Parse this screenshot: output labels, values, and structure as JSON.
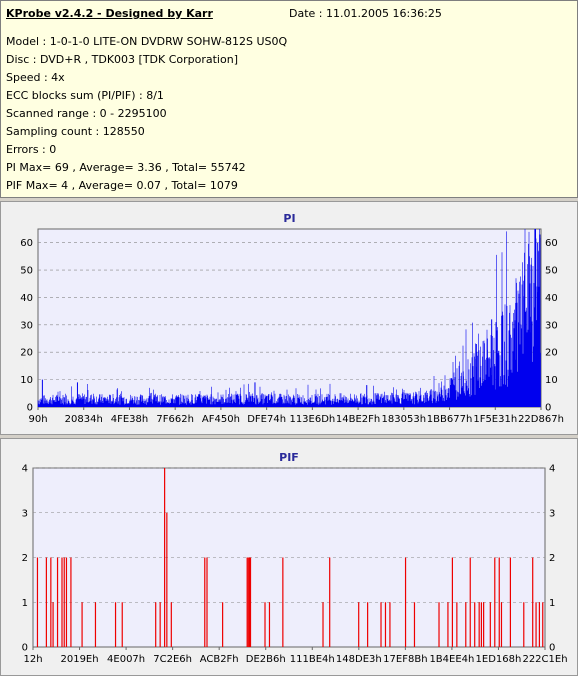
{
  "info": {
    "title": "KProbe v2.4.2 - Designed by Karr",
    "date": "Date : 11.01.2005 16:36:25",
    "lines": [
      "Model : 1-0-1-0 LITE-ON DVDRW SOHW-812S  US0Q",
      "Disc : DVD+R , TDK003 [TDK Corporation]",
      "Speed : 4x",
      "ECC blocks sum (PI/PIF) : 8/1",
      "Scanned range : 0 - 2295100",
      "Sampling count : 128550",
      "Errors : 0",
      "PI Max= 69 , Average= 3.36 , Total= 55742",
      "PIF Max= 4 , Average= 0.07 , Total= 1079"
    ]
  },
  "colors": {
    "pi": "#0000ee",
    "pif": "#ee0000",
    "plot_bg": "#eeeefc",
    "grid": "#888888"
  },
  "chart_data": [
    {
      "type": "bar",
      "title": "PI",
      "ylim": [
        0,
        65
      ],
      "yticks": [
        0,
        10,
        20,
        30,
        40,
        50,
        60
      ],
      "xlim": [
        0,
        2295100
      ],
      "xtick_labels": [
        "90h",
        "20834h",
        "4FE38h",
        "7F662h",
        "AF450h",
        "DFE74h",
        "113E6Dh",
        "14BE2Fh",
        "183053h",
        "1BB677h",
        "1F5E31h",
        "22D867h"
      ],
      "grid": "horizontal-dashed",
      "series": [
        {
          "points": [
            [
              0,
              2.5
            ],
            [
              100000,
              2.8
            ],
            [
              200000,
              3.0
            ],
            [
              300000,
              2.8
            ],
            [
              400000,
              2.9
            ],
            [
              500000,
              2.7
            ],
            [
              600000,
              2.8
            ],
            [
              700000,
              2.9
            ],
            [
              800000,
              2.8
            ],
            [
              900000,
              3.0
            ],
            [
              1000000,
              3.0
            ],
            [
              1100000,
              2.9
            ],
            [
              1200000,
              2.8
            ],
            [
              1300000,
              2.9
            ],
            [
              1400000,
              3.0
            ],
            [
              1500000,
              3.0
            ],
            [
              1600000,
              3.1
            ],
            [
              1700000,
              3.2
            ],
            [
              1750000,
              3.5
            ],
            [
              1800000,
              4.0
            ],
            [
              1850000,
              6.0
            ],
            [
              1900000,
              8.0
            ],
            [
              1950000,
              11.0
            ],
            [
              2000000,
              14.0
            ],
            [
              2050000,
              17.0
            ],
            [
              2100000,
              20.0
            ],
            [
              2150000,
              24.0
            ],
            [
              2200000,
              30.0
            ],
            [
              2250000,
              40.0
            ],
            [
              2295100,
              55.0
            ]
          ]
        }
      ],
      "peaks": [
        [
          20000,
          10
        ],
        [
          180000,
          9
        ],
        [
          990000,
          9
        ],
        [
          1500000,
          8
        ],
        [
          1940000,
          13
        ],
        [
          2000000,
          23
        ],
        [
          2050000,
          25
        ],
        [
          2070000,
          32
        ],
        [
          2090000,
          31
        ],
        [
          2150000,
          28
        ],
        [
          2180000,
          38
        ],
        [
          2220000,
          48
        ],
        [
          2250000,
          52
        ],
        [
          2270000,
          65
        ],
        [
          2280000,
          60
        ],
        [
          2290000,
          63
        ]
      ]
    },
    {
      "type": "bar",
      "title": "PIF",
      "ylim": [
        0,
        4
      ],
      "yticks": [
        0,
        1,
        2,
        3,
        4
      ],
      "xlim": [
        0,
        2295100
      ],
      "xtick_labels": [
        "12h",
        "2019Eh",
        "4E007h",
        "7C2E6h",
        "ACB2Fh",
        "DE2B6h",
        "111BE4h",
        "148DE3h",
        "17EF8Bh",
        "1B4EE4h",
        "1ED168h",
        "222C1Eh"
      ],
      "grid": "horizontal-dashed",
      "bars": [
        [
          20000,
          2
        ],
        [
          60000,
          2
        ],
        [
          80000,
          2
        ],
        [
          90000,
          1
        ],
        [
          110000,
          2
        ],
        [
          130000,
          2
        ],
        [
          140000,
          2
        ],
        [
          150000,
          2
        ],
        [
          170000,
          2
        ],
        [
          220000,
          1
        ],
        [
          280000,
          1
        ],
        [
          370000,
          1
        ],
        [
          400000,
          1
        ],
        [
          550000,
          1
        ],
        [
          570000,
          1
        ],
        [
          590000,
          4
        ],
        [
          600000,
          3
        ],
        [
          620000,
          1
        ],
        [
          770000,
          2
        ],
        [
          780000,
          2
        ],
        [
          850000,
          1
        ],
        [
          960000,
          2
        ],
        [
          965000,
          2
        ],
        [
          970000,
          2
        ],
        [
          975000,
          2
        ],
        [
          1040000,
          1
        ],
        [
          1060000,
          1
        ],
        [
          1120000,
          2
        ],
        [
          1300000,
          1
        ],
        [
          1330000,
          2
        ],
        [
          1460000,
          1
        ],
        [
          1500000,
          1
        ],
        [
          1560000,
          1
        ],
        [
          1580000,
          1
        ],
        [
          1600000,
          1
        ],
        [
          1670000,
          2
        ],
        [
          1710000,
          1
        ],
        [
          1820000,
          1
        ],
        [
          1860000,
          1
        ],
        [
          1880000,
          2
        ],
        [
          1900000,
          1
        ],
        [
          1940000,
          1
        ],
        [
          1960000,
          2
        ],
        [
          1980000,
          1
        ],
        [
          2000000,
          1
        ],
        [
          2010000,
          1
        ],
        [
          2020000,
          1
        ],
        [
          2050000,
          1
        ],
        [
          2070000,
          2
        ],
        [
          2090000,
          2
        ],
        [
          2100000,
          1
        ],
        [
          2140000,
          2
        ],
        [
          2200000,
          1
        ],
        [
          2240000,
          2
        ],
        [
          2255000,
          1
        ],
        [
          2270000,
          1
        ],
        [
          2285000,
          1
        ]
      ]
    }
  ]
}
